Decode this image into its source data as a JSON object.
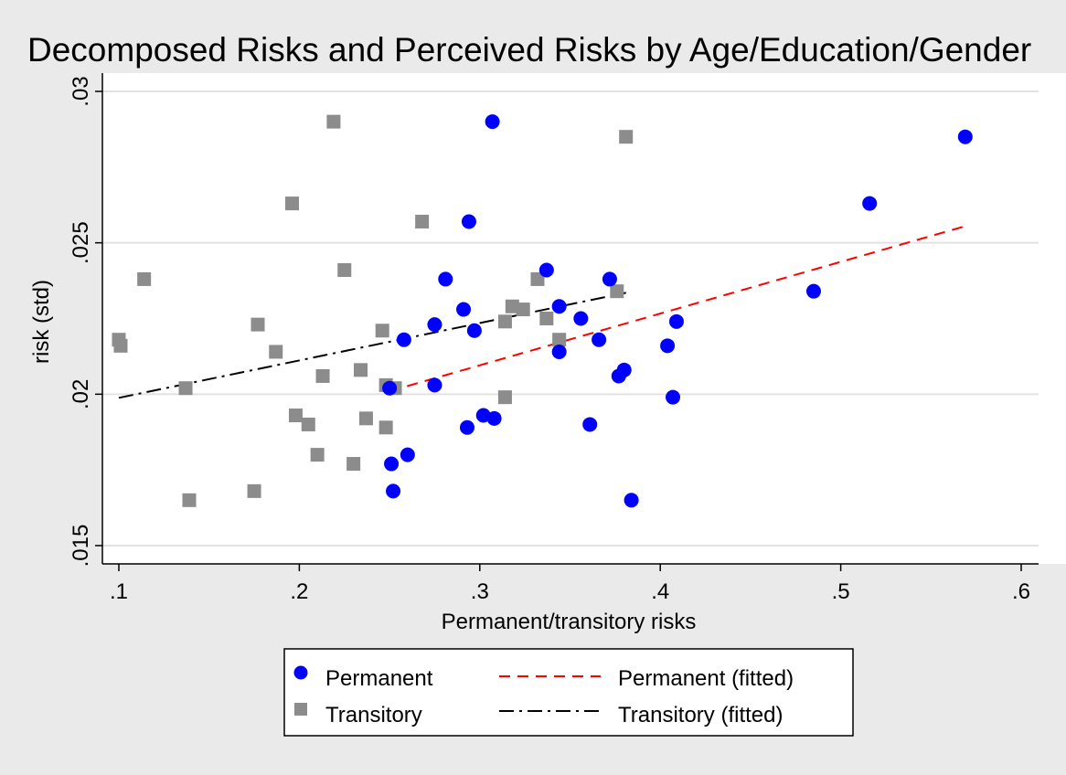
{
  "chart_data": {
    "type": "scatter",
    "title": "Decomposed Risks and Perceived Risks by Age/Education/Gender",
    "xlabel": "Permanent/transitory risks",
    "ylabel": "risk (std)",
    "xlim": [
      0.1,
      0.6
    ],
    "ylim": [
      0.015,
      0.03
    ],
    "xticks": [
      {
        "value": 0.1,
        "label": ".1"
      },
      {
        "value": 0.2,
        "label": ".2"
      },
      {
        "value": 0.3,
        "label": ".3"
      },
      {
        "value": 0.4,
        "label": ".4"
      },
      {
        "value": 0.5,
        "label": ".5"
      },
      {
        "value": 0.6,
        "label": ".6"
      }
    ],
    "yticks": [
      {
        "value": 0.015,
        "label": ".015"
      },
      {
        "value": 0.02,
        "label": ".02"
      },
      {
        "value": 0.025,
        "label": ".025"
      },
      {
        "value": 0.03,
        "label": ".03"
      }
    ],
    "grid": true,
    "legend_position": "bottom",
    "series": [
      {
        "name": "Permanent",
        "kind": "scatter",
        "marker": "circle",
        "color": "#0000ff",
        "points": [
          [
            0.307,
            0.029
          ],
          [
            0.569,
            0.0285
          ],
          [
            0.516,
            0.0263
          ],
          [
            0.294,
            0.0257
          ],
          [
            0.337,
            0.0241
          ],
          [
            0.281,
            0.0238
          ],
          [
            0.372,
            0.0238
          ],
          [
            0.485,
            0.0234
          ],
          [
            0.291,
            0.0228
          ],
          [
            0.344,
            0.0229
          ],
          [
            0.356,
            0.0225
          ],
          [
            0.409,
            0.0224
          ],
          [
            0.275,
            0.0223
          ],
          [
            0.297,
            0.0221
          ],
          [
            0.258,
            0.0218
          ],
          [
            0.366,
            0.0218
          ],
          [
            0.404,
            0.0216
          ],
          [
            0.344,
            0.0214
          ],
          [
            0.38,
            0.0208
          ],
          [
            0.377,
            0.0206
          ],
          [
            0.275,
            0.0203
          ],
          [
            0.25,
            0.0202
          ],
          [
            0.407,
            0.0199
          ],
          [
            0.302,
            0.0193
          ],
          [
            0.308,
            0.0192
          ],
          [
            0.293,
            0.0189
          ],
          [
            0.361,
            0.019
          ],
          [
            0.26,
            0.018
          ],
          [
            0.251,
            0.0177
          ],
          [
            0.252,
            0.0168
          ],
          [
            0.384,
            0.0165
          ]
        ]
      },
      {
        "name": "Transitory",
        "kind": "scatter",
        "marker": "square",
        "color": "#8c8c8c",
        "points": [
          [
            0.219,
            0.029
          ],
          [
            0.381,
            0.0285
          ],
          [
            0.196,
            0.0263
          ],
          [
            0.268,
            0.0257
          ],
          [
            0.225,
            0.0241
          ],
          [
            0.114,
            0.0238
          ],
          [
            0.332,
            0.0238
          ],
          [
            0.376,
            0.0234
          ],
          [
            0.318,
            0.0229
          ],
          [
            0.324,
            0.0228
          ],
          [
            0.337,
            0.0225
          ],
          [
            0.314,
            0.0224
          ],
          [
            0.177,
            0.0223
          ],
          [
            0.246,
            0.0221
          ],
          [
            0.1,
            0.0218
          ],
          [
            0.344,
            0.0218
          ],
          [
            0.101,
            0.0216
          ],
          [
            0.187,
            0.0214
          ],
          [
            0.234,
            0.0208
          ],
          [
            0.213,
            0.0206
          ],
          [
            0.248,
            0.0203
          ],
          [
            0.253,
            0.0202
          ],
          [
            0.137,
            0.0202
          ],
          [
            0.314,
            0.0199
          ],
          [
            0.198,
            0.0193
          ],
          [
            0.237,
            0.0192
          ],
          [
            0.205,
            0.019
          ],
          [
            0.248,
            0.0189
          ],
          [
            0.21,
            0.018
          ],
          [
            0.23,
            0.0177
          ],
          [
            0.175,
            0.0168
          ],
          [
            0.139,
            0.0165
          ]
        ]
      },
      {
        "name": "Permanent (fitted)",
        "kind": "line",
        "dash": "dashed",
        "color": "#ff0000",
        "points": [
          [
            0.25,
            0.0201
          ],
          [
            0.569,
            0.02555
          ]
        ]
      },
      {
        "name": "Transitory (fitted)",
        "kind": "line",
        "dash": "dash-dot",
        "color": "#000000",
        "points": [
          [
            0.1,
            0.01988
          ],
          [
            0.381,
            0.02335
          ]
        ]
      }
    ]
  }
}
